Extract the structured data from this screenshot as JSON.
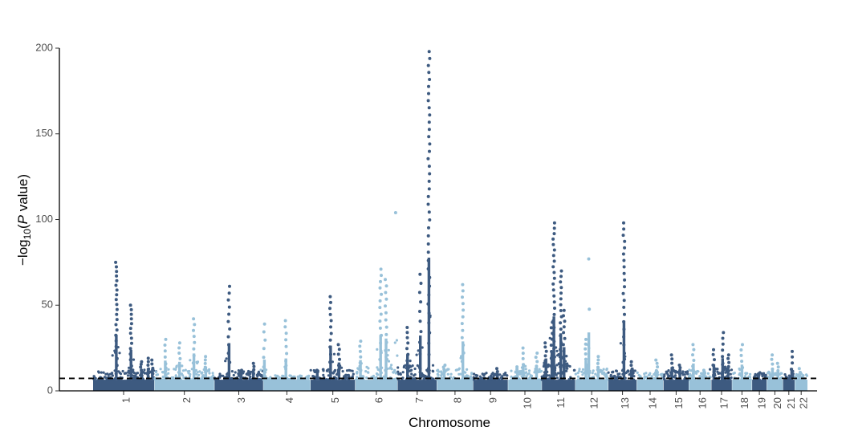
{
  "chart_data": {
    "type": "scatter",
    "subtype": "manhattan",
    "xlabel": "Chromosome",
    "ylabel_parts": {
      "main": "−log",
      "sub": "10",
      "open": "(",
      "italic": "P",
      "rest": " value)"
    },
    "ylim": [
      0,
      200
    ],
    "yticks": [
      0,
      50,
      100,
      150,
      200
    ],
    "threshold": 7.3,
    "threshold_style": "dashed",
    "grid": false,
    "colors": {
      "dark": "#3d5a80",
      "light": "#98c1d9"
    },
    "chromosomes": [
      {
        "label": "1",
        "color": "dark",
        "baseline": 10,
        "peaks": [
          {
            "pos": 0.38,
            "y": 75,
            "n": 22
          },
          {
            "pos": 0.62,
            "y": 50,
            "n": 14
          },
          {
            "pos": 0.79,
            "y": 17,
            "n": 5
          },
          {
            "pos": 0.9,
            "y": 19,
            "n": 5
          },
          {
            "pos": 0.97,
            "y": 18,
            "n": 4
          }
        ]
      },
      {
        "label": "2",
        "color": "light",
        "baseline": 11,
        "peaks": [
          {
            "pos": 0.18,
            "y": 30,
            "n": 6
          },
          {
            "pos": 0.42,
            "y": 28,
            "n": 6
          },
          {
            "pos": 0.66,
            "y": 42,
            "n": 9
          },
          {
            "pos": 0.86,
            "y": 20,
            "n": 5
          }
        ]
      },
      {
        "label": "3",
        "color": "dark",
        "baseline": 10,
        "peaks": [
          {
            "pos": 0.3,
            "y": 61,
            "n": 12
          },
          {
            "pos": 0.55,
            "y": 12,
            "n": 3
          },
          {
            "pos": 0.8,
            "y": 16,
            "n": 4
          }
        ]
      },
      {
        "label": "4",
        "color": "light",
        "baseline": 7,
        "peaks": [
          {
            "pos": 0.02,
            "y": 39,
            "n": 7
          },
          {
            "pos": 0.48,
            "y": 41,
            "n": 9
          }
        ]
      },
      {
        "label": "5",
        "color": "dark",
        "baseline": 11,
        "peaks": [
          {
            "pos": 0.45,
            "y": 55,
            "n": 12
          },
          {
            "pos": 0.64,
            "y": 27,
            "n": 6
          },
          {
            "pos": 0.15,
            "y": 12,
            "n": 3
          }
        ]
      },
      {
        "label": "6",
        "color": "light",
        "baseline": 12,
        "peaks": [
          {
            "pos": 0.12,
            "y": 29,
            "n": 6
          },
          {
            "pos": 0.6,
            "y": 71,
            "n": 15
          },
          {
            "pos": 0.73,
            "y": 65,
            "n": 13
          },
          {
            "pos": 0.95,
            "y": 104,
            "n": 1
          }
        ]
      },
      {
        "label": "7",
        "color": "dark",
        "baseline": 13,
        "peaks": [
          {
            "pos": 0.25,
            "y": 37,
            "n": 8
          },
          {
            "pos": 0.58,
            "y": 68,
            "n": 10
          },
          {
            "pos": 0.8,
            "y": 198,
            "n": 40
          }
        ]
      },
      {
        "label": "8",
        "color": "light",
        "baseline": 11,
        "peaks": [
          {
            "pos": 0.2,
            "y": 15,
            "n": 4
          },
          {
            "pos": 0.72,
            "y": 62,
            "n": 13
          }
        ]
      },
      {
        "label": "9",
        "color": "dark",
        "baseline": 9,
        "peaks": [
          {
            "pos": 0.7,
            "y": 13,
            "n": 3
          }
        ]
      },
      {
        "label": "10",
        "color": "light",
        "baseline": 11,
        "peaks": [
          {
            "pos": 0.28,
            "y": 14,
            "n": 3
          },
          {
            "pos": 0.45,
            "y": 25,
            "n": 5
          },
          {
            "pos": 0.85,
            "y": 22,
            "n": 5
          }
        ]
      },
      {
        "label": "11",
        "color": "dark",
        "baseline": 14,
        "peaks": [
          {
            "pos": 0.3,
            "y": 40,
            "n": 8
          },
          {
            "pos": 0.36,
            "y": 98,
            "n": 24
          },
          {
            "pos": 0.57,
            "y": 70,
            "n": 16
          },
          {
            "pos": 0.67,
            "y": 47,
            "n": 10
          },
          {
            "pos": 0.12,
            "y": 28,
            "n": 6
          }
        ]
      },
      {
        "label": "12",
        "color": "light",
        "baseline": 11,
        "peaks": [
          {
            "pos": 0.32,
            "y": 30,
            "n": 7
          },
          {
            "pos": 0.41,
            "y": 77,
            "n": 3
          },
          {
            "pos": 0.7,
            "y": 20,
            "n": 5
          }
        ]
      },
      {
        "label": "13",
        "color": "dark",
        "baseline": 10,
        "peaks": [
          {
            "pos": 0.55,
            "y": 98,
            "n": 22
          },
          {
            "pos": 0.82,
            "y": 17,
            "n": 4
          }
        ]
      },
      {
        "label": "14",
        "color": "light",
        "baseline": 9,
        "peaks": [
          {
            "pos": 0.75,
            "y": 18,
            "n": 5
          }
        ]
      },
      {
        "label": "15",
        "color": "dark",
        "baseline": 10,
        "peaks": [
          {
            "pos": 0.33,
            "y": 21,
            "n": 5
          },
          {
            "pos": 0.65,
            "y": 15,
            "n": 4
          }
        ]
      },
      {
        "label": "16",
        "color": "light",
        "baseline": 10,
        "peaks": [
          {
            "pos": 0.2,
            "y": 27,
            "n": 6
          },
          {
            "pos": 0.7,
            "y": 12,
            "n": 3
          }
        ]
      },
      {
        "label": "17",
        "color": "dark",
        "baseline": 11,
        "peaks": [
          {
            "pos": 0.12,
            "y": 24,
            "n": 5
          },
          {
            "pos": 0.55,
            "y": 34,
            "n": 7
          },
          {
            "pos": 0.82,
            "y": 21,
            "n": 5
          }
        ]
      },
      {
        "label": "18",
        "color": "light",
        "baseline": 9,
        "peaks": [
          {
            "pos": 0.5,
            "y": 27,
            "n": 6
          }
        ]
      },
      {
        "label": "19",
        "color": "dark",
        "baseline": 9,
        "peaks": [
          {
            "pos": 0.45,
            "y": 10,
            "n": 3
          }
        ]
      },
      {
        "label": "20",
        "color": "light",
        "baseline": 9,
        "peaks": [
          {
            "pos": 0.35,
            "y": 21,
            "n": 5
          },
          {
            "pos": 0.7,
            "y": 16,
            "n": 4
          }
        ]
      },
      {
        "label": "21",
        "color": "dark",
        "baseline": 8,
        "peaks": [
          {
            "pos": 0.75,
            "y": 23,
            "n": 5
          }
        ]
      },
      {
        "label": "22",
        "color": "light",
        "baseline": 8,
        "peaks": [
          {
            "pos": 0.4,
            "y": 13,
            "n": 3
          }
        ]
      }
    ]
  }
}
